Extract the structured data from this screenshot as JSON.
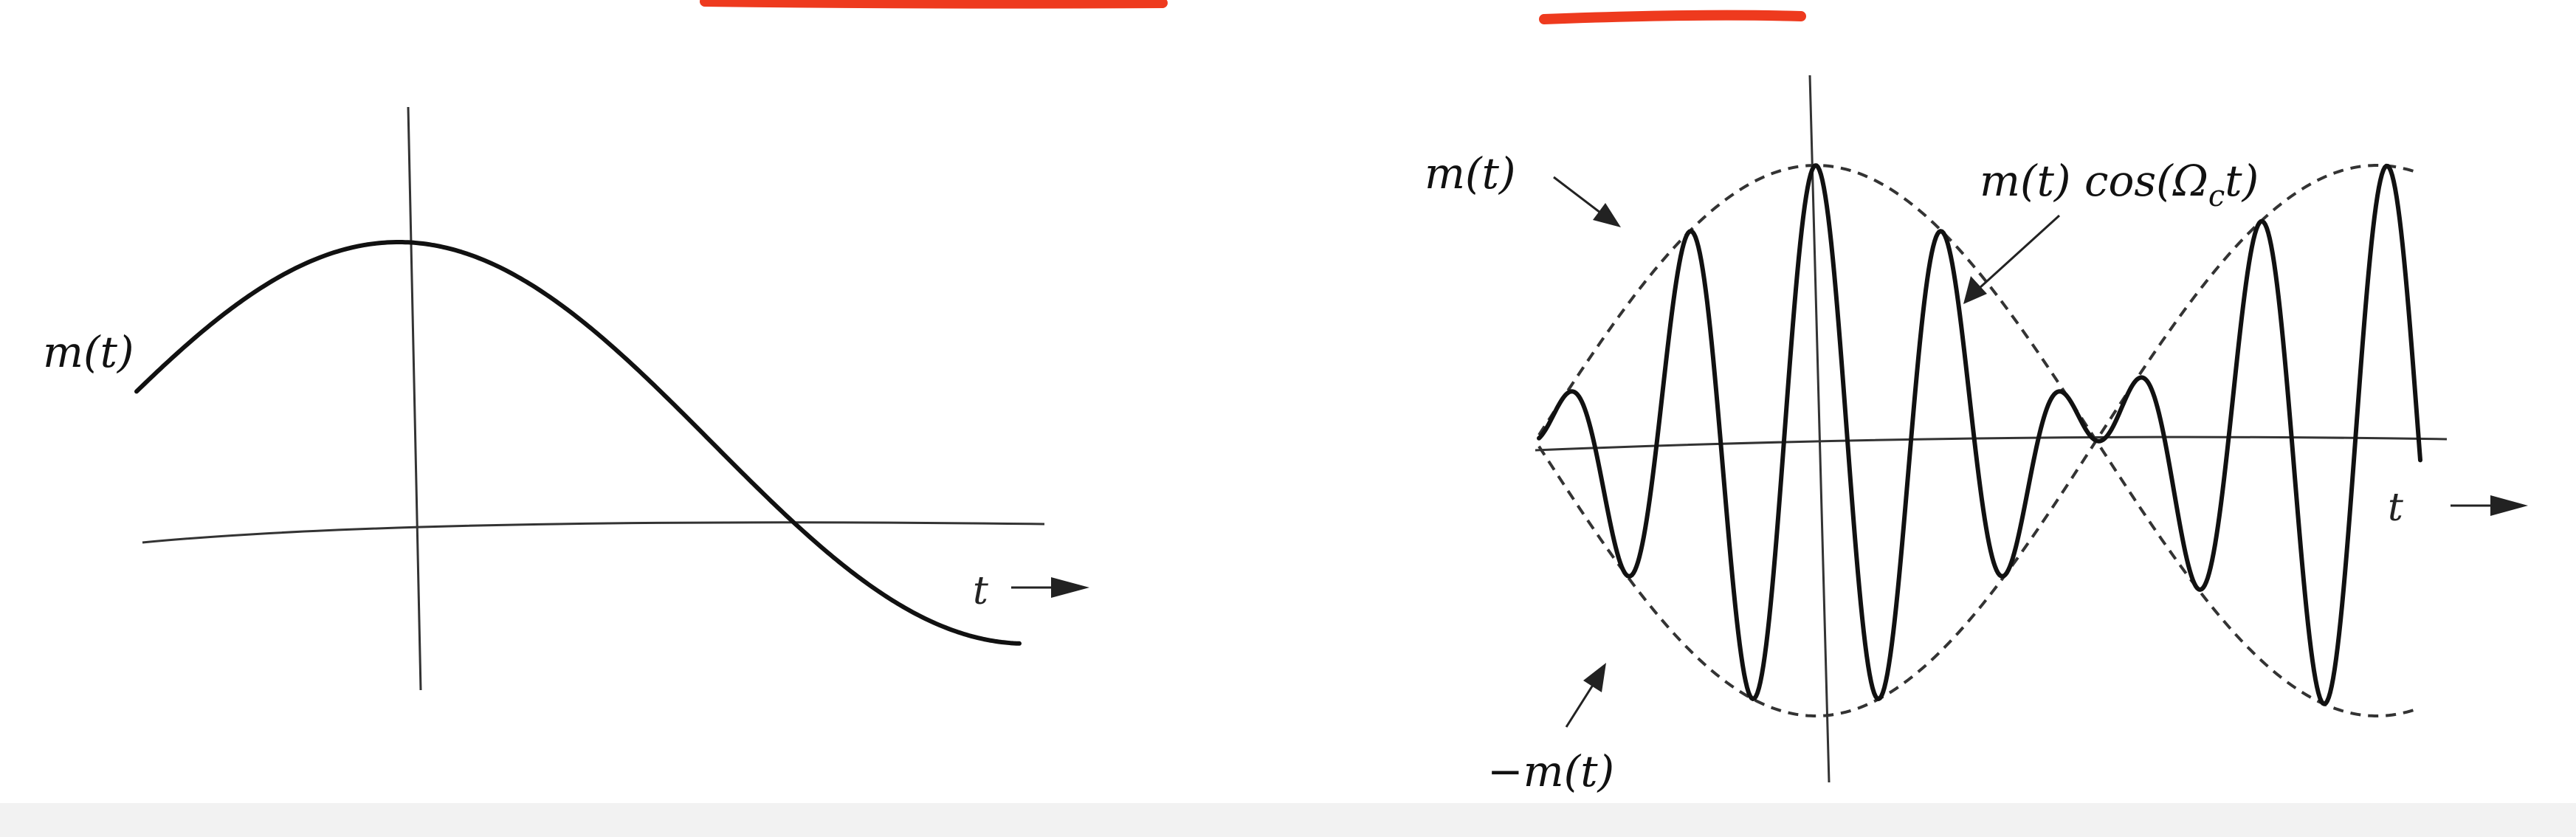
{
  "colors": {
    "curve": "#111111",
    "axis": "#333333",
    "envelope": "#333333",
    "highlight": "#ee3a1e",
    "bottom_bar": "#f2f2f2"
  },
  "left_panel": {
    "curve_label": "m(t)",
    "axis_label": "t"
  },
  "right_panel": {
    "upper_envelope_label": "m(t)",
    "lower_envelope_label": "−m(t)",
    "modulated_label": "m(t) cos(Ω",
    "modulated_subscript": "c",
    "modulated_tail": "t)",
    "axis_label": "t"
  }
}
